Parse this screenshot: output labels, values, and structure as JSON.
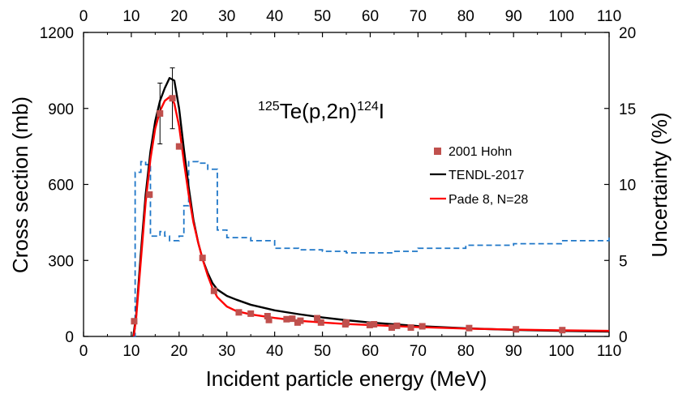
{
  "chart_data": {
    "type": "scatter",
    "title": "",
    "xlabel": "Incident particle energy (MeV)",
    "ylabel": "Cross section (mb)",
    "y2label": "Uncertainty (%)",
    "xlim": [
      0,
      110
    ],
    "ylim": [
      0,
      1200
    ],
    "y2lim": [
      0,
      20
    ],
    "xticks": [
      0,
      10,
      20,
      30,
      40,
      50,
      60,
      70,
      80,
      90,
      100,
      110
    ],
    "yticks": [
      0,
      300,
      600,
      900,
      1200
    ],
    "y2ticks": [
      0,
      5,
      10,
      15,
      20
    ],
    "annotation": {
      "mass": "125",
      "target": "Te(p,2n)",
      "product_mass": "124",
      "product": "I"
    },
    "legend": {
      "position": "right",
      "entries": [
        {
          "label": "2001 Hohn",
          "color": "#c0504d",
          "marker": "square"
        },
        {
          "label": "TENDL-2017",
          "color": "#000000",
          "marker": "line"
        },
        {
          "label": "Pade 8, N=28",
          "color": "#ff0000",
          "marker": "line"
        }
      ]
    },
    "series": [
      {
        "name": "2001 Hohn",
        "kind": "points",
        "color": "#c0504d",
        "x": [
          10.6,
          13.8,
          16.0,
          18.6,
          20.0,
          24.9,
          27.3,
          32.5,
          35.0,
          38.5,
          38.8,
          42.5,
          43.7,
          44.8,
          45.4,
          48.9,
          49.7,
          54.8,
          55.0,
          59.9,
          60.8,
          64.5,
          65.6,
          68.5,
          70.9,
          80.7,
          90.5,
          100.2
        ],
        "y": [
          60,
          560,
          880,
          940,
          750,
          310,
          180,
          95,
          90,
          80,
          65,
          68,
          70,
          55,
          62,
          72,
          55,
          48,
          55,
          45,
          48,
          35,
          42,
          35,
          40,
          33,
          28,
          25
        ],
        "yerr": [
          0,
          0,
          120,
          120,
          0,
          0,
          0,
          0,
          0,
          0,
          0,
          0,
          0,
          0,
          0,
          0,
          0,
          0,
          0,
          0,
          0,
          0,
          0,
          0,
          0,
          0,
          0,
          0
        ]
      },
      {
        "name": "TENDL-2017",
        "kind": "line",
        "color": "#000000",
        "x": [
          10.4,
          11,
          12,
          13,
          14,
          15,
          16,
          17,
          18,
          19,
          20,
          21,
          22,
          23,
          24,
          25,
          26,
          27,
          28,
          30,
          32,
          35,
          40,
          45,
          50,
          55,
          60,
          70,
          80,
          90,
          100,
          110
        ],
        "y": [
          0,
          80,
          330,
          560,
          730,
          850,
          930,
          980,
          1020,
          1010,
          900,
          740,
          590,
          460,
          370,
          300,
          250,
          210,
          185,
          160,
          145,
          125,
          103,
          88,
          75,
          64,
          55,
          41,
          32,
          26,
          22,
          19
        ]
      },
      {
        "name": "Pade 8, N=28",
        "kind": "line",
        "color": "#ff0000",
        "x": [
          10.5,
          11,
          12,
          13,
          14,
          15,
          16,
          17,
          18,
          19,
          20,
          21,
          22,
          23,
          24,
          25,
          26,
          27,
          28,
          30,
          32,
          35,
          40,
          45,
          50,
          55,
          60,
          65,
          70,
          80,
          90,
          100,
          110
        ],
        "y": [
          0,
          70,
          300,
          530,
          700,
          820,
          890,
          930,
          945,
          920,
          830,
          690,
          560,
          450,
          370,
          300,
          240,
          190,
          155,
          118,
          100,
          87,
          73,
          62,
          55,
          49,
          45,
          41,
          37,
          31,
          27,
          24,
          22
        ]
      },
      {
        "name": "Uncertainty",
        "kind": "step",
        "axis": "right",
        "color": "#1f77c8",
        "dash": true,
        "x": [
          10.4,
          10.8,
          12.0,
          13.0,
          14.0,
          15.2,
          16.0,
          17.0,
          18.0,
          19.0,
          20.0,
          21.0,
          22.0,
          24.0,
          26.0,
          28.0,
          30.0,
          35.0,
          40.0,
          45.0,
          50.0,
          55.0,
          60.0,
          65.0,
          70.0,
          80.0,
          90.0,
          100.0,
          110.0
        ],
        "y": [
          0,
          10.8,
          11.5,
          11.3,
          6.6,
          6.6,
          6.9,
          6.6,
          6.3,
          6.3,
          6.6,
          8.6,
          11.5,
          11.4,
          11.0,
          7.0,
          6.5,
          6.3,
          5.8,
          5.7,
          5.6,
          5.5,
          5.5,
          5.6,
          5.8,
          6.0,
          6.1,
          6.3,
          6.7
        ]
      }
    ]
  }
}
